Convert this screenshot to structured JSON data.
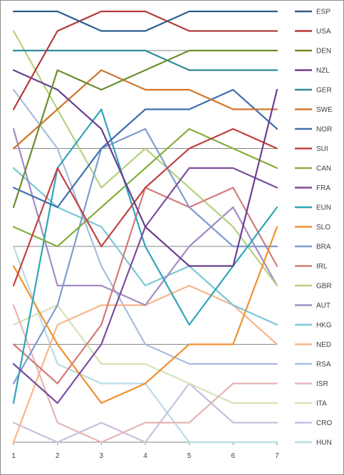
{
  "chart_data": {
    "type": "line",
    "x": [
      1,
      2,
      3,
      4,
      5,
      6,
      7
    ],
    "xlim": [
      1,
      7
    ],
    "ylim": [
      0,
      22
    ],
    "y_axis_visible": false,
    "grid": "horizontal-every-5",
    "legend_position": "right",
    "series": [
      {
        "name": "ESP",
        "color": "#2E5C8E",
        "values": [
          22,
          22,
          21,
          21,
          22,
          22,
          22
        ]
      },
      {
        "name": "USA",
        "color": "#B33A3A",
        "values": [
          17,
          21,
          22,
          22,
          21,
          21,
          21
        ]
      },
      {
        "name": "DEN",
        "color": "#6B8E2E",
        "values": [
          12,
          19,
          18,
          19,
          20,
          20,
          20
        ]
      },
      {
        "name": "NZL",
        "color": "#6A3F8E",
        "values": [
          19,
          18,
          16,
          11,
          9,
          9,
          18
        ]
      },
      {
        "name": "GER",
        "color": "#2E8A99",
        "values": [
          20,
          20,
          20,
          20,
          19,
          19,
          19
        ]
      },
      {
        "name": "SWE",
        "color": "#D0762E",
        "values": [
          15,
          17,
          19,
          18,
          18,
          17,
          17
        ]
      },
      {
        "name": "NOR",
        "color": "#3F6FAF",
        "values": [
          13,
          12,
          15,
          17,
          17,
          18,
          16
        ]
      },
      {
        "name": "SUI",
        "color": "#C24040",
        "values": [
          8,
          14,
          10,
          13,
          15,
          16,
          15
        ]
      },
      {
        "name": "CAN",
        "color": "#86AE3C",
        "values": [
          11,
          10,
          12,
          14,
          16,
          15,
          14
        ]
      },
      {
        "name": "FRA",
        "color": "#7A4E9E",
        "values": [
          4,
          2,
          5,
          11,
          14,
          14,
          13
        ]
      },
      {
        "name": "EUN",
        "color": "#2FA5B8",
        "values": [
          2,
          14,
          17,
          10,
          6,
          9,
          12
        ]
      },
      {
        "name": "SLO",
        "color": "#F0912E",
        "values": [
          9,
          5,
          2,
          3,
          5,
          5,
          11
        ]
      },
      {
        "name": "BRA",
        "color": "#7F9BD0",
        "values": [
          3,
          7,
          15,
          16,
          12,
          10,
          10
        ]
      },
      {
        "name": "IRL",
        "color": "#D47B7B",
        "values": [
          5,
          3,
          6,
          13,
          12,
          13,
          9
        ]
      },
      {
        "name": "GBR",
        "color": "#B5D27E",
        "values": [
          21,
          17,
          13,
          15,
          13,
          11,
          8
        ]
      },
      {
        "name": "AUT",
        "color": "#A48BC4",
        "values": [
          16,
          8,
          8,
          7,
          10,
          12,
          8
        ]
      },
      {
        "name": "HKG",
        "color": "#7CC8D4",
        "values": [
          14,
          12,
          11,
          8,
          9,
          7,
          6
        ]
      },
      {
        "name": "NED",
        "color": "#F8B68A",
        "values": [
          0,
          6,
          7,
          7,
          8,
          7,
          5
        ]
      },
      {
        "name": "RSA",
        "color": "#A9BCDD",
        "values": [
          18,
          15,
          9,
          5,
          4,
          4,
          4
        ]
      },
      {
        "name": "ISR",
        "color": "#E5B5B5",
        "values": [
          7,
          1,
          0,
          1,
          1,
          3,
          3
        ]
      },
      {
        "name": "ITA",
        "color": "#D4E4B5",
        "values": [
          6,
          7,
          4,
          4,
          3,
          2,
          2
        ]
      },
      {
        "name": "CRO",
        "color": "#C9BFDD",
        "values": [
          1,
          0,
          1,
          0,
          3,
          1,
          1
        ]
      },
      {
        "name": "HUN",
        "color": "#B9DCE6",
        "values": [
          10,
          4,
          3,
          3,
          0,
          0,
          0
        ]
      }
    ]
  }
}
